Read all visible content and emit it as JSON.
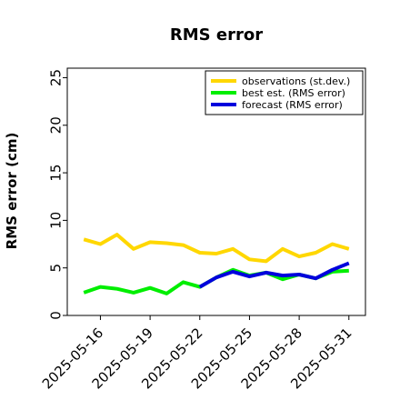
{
  "chart_data": {
    "type": "line",
    "title": "RMS error",
    "xlabel": "",
    "ylabel": "RMS error (cm)",
    "ylim": [
      0,
      26
    ],
    "yticks": [
      0,
      5,
      10,
      15,
      20,
      25
    ],
    "xlim": [
      "2025-05-14",
      "2025-06-01"
    ],
    "xticks": [
      "2025-05-16",
      "2025-05-19",
      "2025-05-22",
      "2025-05-25",
      "2025-05-28",
      "2025-05-31"
    ],
    "highlighted_xtick": "2025-05-22",
    "highlight_color": "#228B22",
    "grid": false,
    "legend_position": "top-right",
    "series": [
      {
        "name": "observations (st.dev.)",
        "color": "#FFD700",
        "x": [
          "2025-05-15",
          "2025-05-16",
          "2025-05-17",
          "2025-05-18",
          "2025-05-19",
          "2025-05-20",
          "2025-05-21",
          "2025-05-22",
          "2025-05-23",
          "2025-05-24",
          "2025-05-25",
          "2025-05-26",
          "2025-05-27",
          "2025-05-28",
          "2025-05-29",
          "2025-05-30",
          "2025-05-31"
        ],
        "values": [
          8.0,
          7.5,
          8.5,
          7.0,
          7.7,
          7.6,
          7.4,
          6.6,
          6.5,
          7.0,
          5.9,
          5.7,
          7.0,
          6.2,
          6.6,
          7.5,
          7.0
        ]
      },
      {
        "name": "best est. (RMS error)",
        "color": "#00EE00",
        "x": [
          "2025-05-15",
          "2025-05-16",
          "2025-05-17",
          "2025-05-18",
          "2025-05-19",
          "2025-05-20",
          "2025-05-21",
          "2025-05-22",
          "2025-05-23",
          "2025-05-24",
          "2025-05-25",
          "2025-05-26",
          "2025-05-27",
          "2025-05-28",
          "2025-05-29",
          "2025-05-30",
          "2025-05-31"
        ],
        "values": [
          2.4,
          3.0,
          2.8,
          2.4,
          2.9,
          2.3,
          3.5,
          3.0,
          4.0,
          4.8,
          4.2,
          4.5,
          3.8,
          4.3,
          3.9,
          4.6,
          4.7
        ]
      },
      {
        "name": "forecast (RMS error)",
        "color": "#0000DD",
        "x": [
          "2025-05-22",
          "2025-05-23",
          "2025-05-24",
          "2025-05-25",
          "2025-05-26",
          "2025-05-27",
          "2025-05-28",
          "2025-05-29",
          "2025-05-30",
          "2025-05-31"
        ],
        "values": [
          3.0,
          4.0,
          4.6,
          4.1,
          4.5,
          4.2,
          4.3,
          3.9,
          4.8,
          5.5
        ]
      }
    ]
  }
}
